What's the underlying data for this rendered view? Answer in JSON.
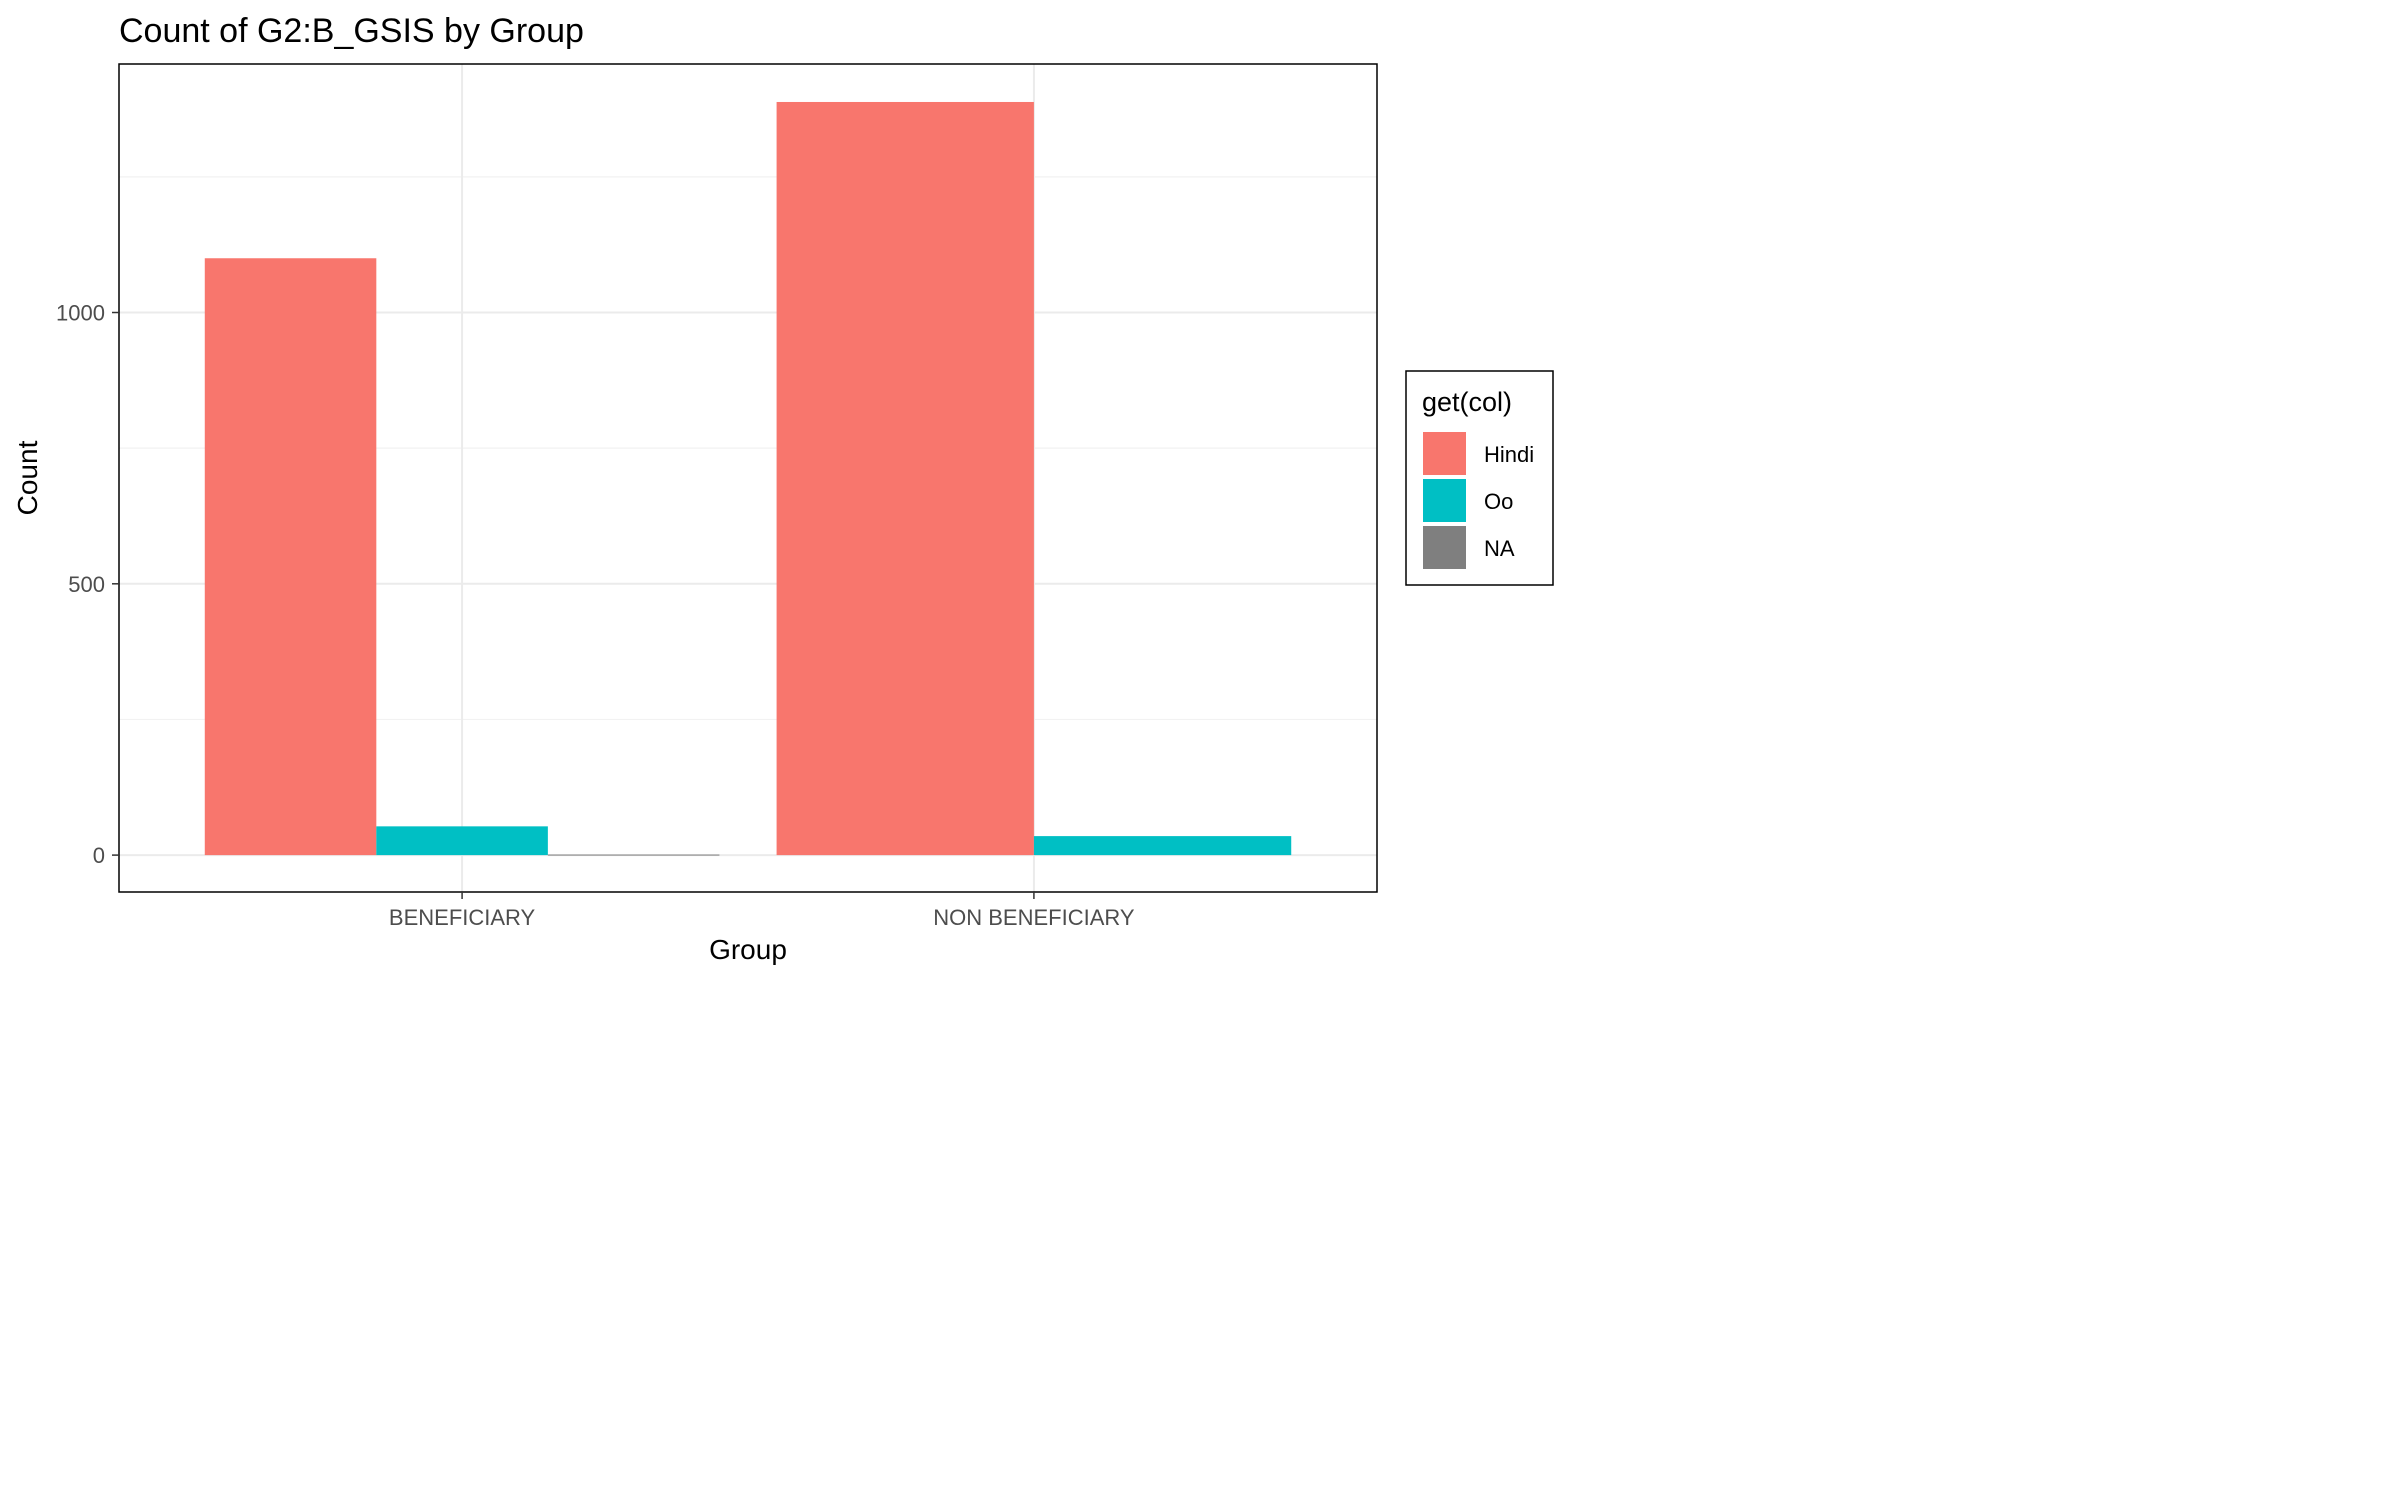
{
  "chart_data": {
    "type": "bar",
    "title": "Count of G2:B_GSIS by Group",
    "xlabel": "Group",
    "ylabel": "Count",
    "categories": [
      "BENEFICIARY",
      "NON BENEFICIARY"
    ],
    "series": [
      {
        "name": "Hindi",
        "color": "#F8766D",
        "values": [
          1100,
          1388
        ]
      },
      {
        "name": "Oo",
        "color": "#00BFC4",
        "values": [
          53,
          35
        ]
      },
      {
        "name": "NA",
        "color": "#7F7F7F",
        "values": [
          1,
          null
        ]
      }
    ],
    "yticks": [
      0,
      500,
      1000
    ],
    "ylim": [
      -68,
      1458
    ],
    "grid": true,
    "legend": {
      "title": "get(col)",
      "position": "right"
    }
  }
}
